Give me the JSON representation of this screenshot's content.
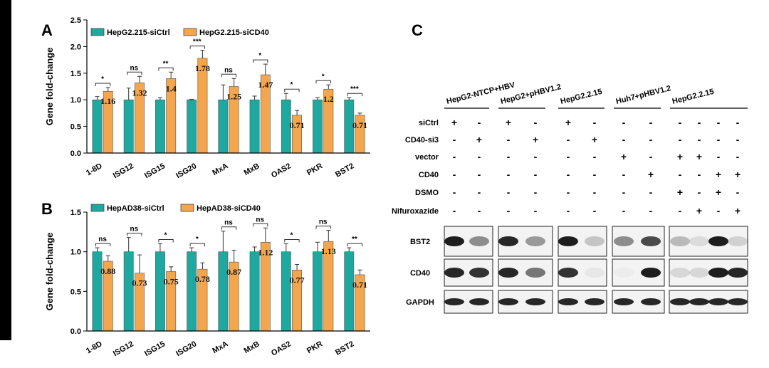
{
  "colors": {
    "ctrl": "#1fa8a0",
    "treat": "#f3a64d"
  },
  "panels": {
    "a": "A",
    "b": "B",
    "c": "C"
  },
  "chart_data": [
    {
      "type": "bar",
      "panel": "A",
      "ylabel": "Gene fold-change",
      "ylim": [
        0,
        2.5
      ],
      "yticks": [
        "0.0",
        "0.5",
        "1.0",
        "1.5",
        "2.0",
        "2.5"
      ],
      "categories": [
        "1-8D",
        "ISG12",
        "ISG15",
        "ISG20",
        "MxA",
        "MxB",
        "OAS2",
        "PKR",
        "BST2"
      ],
      "series": [
        {
          "name": "HepG2.215-siCtrl",
          "values": [
            1.0,
            1.0,
            1.0,
            1.0,
            1.0,
            1.0,
            1.0,
            1.0,
            1.0
          ],
          "errors": [
            0.06,
            0.22,
            0.04,
            0.01,
            0.28,
            0.07,
            0.12,
            0.04,
            0.04
          ]
        },
        {
          "name": "HepG2.215-siCD40",
          "values": [
            1.16,
            1.32,
            1.4,
            1.78,
            1.25,
            1.47,
            0.71,
            1.2,
            0.71
          ],
          "errors": [
            0.07,
            0.12,
            0.12,
            0.15,
            0.15,
            0.2,
            0.09,
            0.08,
            0.04
          ]
        }
      ],
      "data_labels": [
        "1.16",
        "1.32",
        "1.4",
        "1.78",
        "1.25",
        "1.47",
        "0.71",
        "1.2",
        "0.71"
      ],
      "significance": [
        "*",
        "ns",
        "**",
        "***",
        "ns",
        "*",
        "*",
        "*",
        "***"
      ]
    },
    {
      "type": "bar",
      "panel": "B",
      "ylabel": "Gene fold-change",
      "ylim": [
        0,
        1.5
      ],
      "yticks": [
        "0.0",
        "0.5",
        "1.0",
        "1.5"
      ],
      "categories": [
        "1-8D",
        "ISG12",
        "ISG15",
        "ISG20",
        "MxA",
        "MxB",
        "OAS2",
        "PKR",
        "BST2"
      ],
      "series": [
        {
          "name": "HepAD38-siCtrl",
          "values": [
            1.0,
            1.0,
            1.0,
            1.0,
            1.0,
            1.0,
            1.0,
            1.0,
            1.0
          ],
          "errors": [
            0.05,
            0.18,
            0.1,
            0.05,
            0.26,
            0.06,
            0.1,
            0.12,
            0.05
          ]
        },
        {
          "name": "HepAD38-siCD40",
          "values": [
            0.88,
            0.73,
            0.75,
            0.78,
            0.87,
            1.12,
            0.77,
            1.13,
            0.71
          ],
          "errors": [
            0.07,
            0.23,
            0.06,
            0.08,
            0.15,
            0.18,
            0.07,
            0.14,
            0.06
          ]
        }
      ],
      "data_labels": [
        "0.88",
        "0.73",
        "0.75",
        "0.78",
        "0.87",
        "1.12",
        "0.77",
        "1.13",
        "0.71"
      ],
      "significance": [
        "ns",
        "ns",
        "*",
        "*",
        "ns",
        "ns",
        "*",
        "ns",
        "**"
      ]
    }
  ],
  "western_blot": {
    "groups": [
      "HepG2-NTCP+HBV",
      "HepG2+pHBV1.2",
      "HepG2.2.15",
      "Huh7+pHBV1.2",
      "HepG2.2.15"
    ],
    "conditions": [
      {
        "label": "siCtrl",
        "signs": [
          "+",
          "-",
          "+",
          "-",
          "+",
          "-",
          "-",
          "-",
          "-",
          "-",
          "-",
          "-"
        ]
      },
      {
        "label": "CD40-si3",
        "signs": [
          "-",
          "+",
          "-",
          "+",
          "-",
          "+",
          "-",
          "-",
          "-",
          "-",
          "-",
          "-"
        ]
      },
      {
        "label": "vector",
        "signs": [
          "-",
          "-",
          "-",
          "-",
          "-",
          "-",
          "+",
          "-",
          "+",
          "+",
          "-",
          "-"
        ]
      },
      {
        "label": "CD40",
        "signs": [
          "-",
          "-",
          "-",
          "-",
          "-",
          "-",
          "-",
          "+",
          "-",
          "-",
          "+",
          "+"
        ]
      },
      {
        "label": "DSMO",
        "signs": [
          "-",
          "-",
          "-",
          "-",
          "-",
          "-",
          "-",
          "-",
          "+",
          "-",
          "+",
          "-"
        ]
      },
      {
        "label": "Nifuroxazide",
        "signs": [
          "-",
          "-",
          "-",
          "-",
          "-",
          "-",
          "-",
          "-",
          "-",
          "+",
          "-",
          "+"
        ]
      }
    ],
    "blots": [
      {
        "label": "BST2",
        "intensity": [
          0.95,
          0.45,
          0.9,
          0.4,
          0.95,
          0.2,
          0.45,
          0.75,
          0.25,
          0.1,
          0.95,
          0.15
        ]
      },
      {
        "label": "CD40",
        "intensity": [
          0.9,
          0.85,
          0.9,
          0.55,
          0.85,
          0.05,
          0.02,
          0.95,
          0.12,
          0.12,
          0.95,
          0.9
        ]
      },
      {
        "label": "GAPDH",
        "intensity": [
          0.9,
          0.9,
          0.9,
          0.9,
          0.9,
          0.9,
          0.9,
          0.9,
          0.9,
          0.9,
          0.9,
          0.9
        ]
      }
    ]
  }
}
